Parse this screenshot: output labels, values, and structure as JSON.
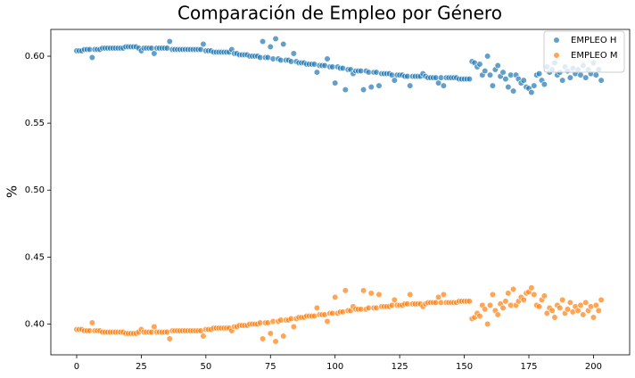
{
  "chart_data": {
    "type": "scatter",
    "title": "Comparación de Empleo por Género",
    "y_label": "%",
    "x": [
      0,
      1,
      2,
      3,
      4,
      5,
      6,
      7,
      8,
      9,
      10,
      11,
      12,
      13,
      14,
      15,
      16,
      17,
      18,
      19,
      20,
      21,
      22,
      23,
      24,
      25,
      26,
      27,
      28,
      29,
      30,
      31,
      32,
      33,
      34,
      35,
      36,
      37,
      38,
      39,
      40,
      41,
      42,
      43,
      44,
      45,
      46,
      47,
      48,
      49,
      50,
      51,
      52,
      53,
      54,
      55,
      56,
      57,
      58,
      59,
      60,
      61,
      62,
      63,
      64,
      65,
      66,
      67,
      68,
      69,
      70,
      71,
      72,
      73,
      74,
      75,
      76,
      77,
      78,
      79,
      80,
      81,
      82,
      83,
      84,
      85,
      86,
      87,
      88,
      89,
      90,
      91,
      92,
      93,
      94,
      95,
      96,
      97,
      98,
      99,
      100,
      101,
      102,
      103,
      104,
      105,
      106,
      107,
      108,
      109,
      110,
      111,
      112,
      113,
      114,
      115,
      116,
      117,
      118,
      119,
      120,
      121,
      122,
      123,
      124,
      125,
      126,
      127,
      128,
      129,
      130,
      131,
      132,
      133,
      134,
      135,
      136,
      137,
      138,
      139,
      140,
      141,
      142,
      143,
      144,
      145,
      146,
      147,
      148,
      149,
      150,
      151,
      152,
      153,
      154,
      155,
      156,
      157,
      158,
      159,
      160,
      161,
      162,
      163,
      164,
      165,
      166,
      167,
      168,
      169,
      170,
      171,
      172,
      173,
      174,
      175,
      176,
      177,
      178,
      179,
      180,
      181,
      182,
      183,
      184,
      185,
      186,
      187,
      188,
      189,
      190,
      191,
      192,
      193,
      194,
      195,
      196,
      197,
      198,
      199,
      200,
      201,
      202,
      203
    ],
    "series": [
      {
        "name": "EMPLEO H",
        "color": "#1f77b4",
        "values": [
          0.604,
          0.604,
          0.604,
          0.605,
          0.605,
          0.605,
          0.599,
          0.605,
          0.605,
          0.605,
          0.606,
          0.606,
          0.606,
          0.606,
          0.606,
          0.606,
          0.606,
          0.606,
          0.606,
          0.607,
          0.607,
          0.607,
          0.607,
          0.607,
          0.606,
          0.604,
          0.606,
          0.606,
          0.606,
          0.606,
          0.602,
          0.606,
          0.606,
          0.606,
          0.606,
          0.606,
          0.611,
          0.605,
          0.605,
          0.605,
          0.605,
          0.605,
          0.605,
          0.605,
          0.605,
          0.605,
          0.605,
          0.605,
          0.605,
          0.609,
          0.604,
          0.604,
          0.604,
          0.603,
          0.603,
          0.603,
          0.603,
          0.603,
          0.603,
          0.603,
          0.605,
          0.602,
          0.602,
          0.601,
          0.601,
          0.601,
          0.601,
          0.6,
          0.6,
          0.6,
          0.6,
          0.599,
          0.611,
          0.599,
          0.599,
          0.607,
          0.598,
          0.613,
          0.598,
          0.597,
          0.609,
          0.597,
          0.597,
          0.596,
          0.602,
          0.596,
          0.595,
          0.595,
          0.595,
          0.594,
          0.594,
          0.594,
          0.594,
          0.588,
          0.593,
          0.593,
          0.593,
          0.598,
          0.592,
          0.592,
          0.58,
          0.592,
          0.591,
          0.591,
          0.575,
          0.59,
          0.59,
          0.587,
          0.589,
          0.589,
          0.589,
          0.575,
          0.589,
          0.588,
          0.577,
          0.588,
          0.588,
          0.578,
          0.587,
          0.587,
          0.587,
          0.587,
          0.586,
          0.582,
          0.586,
          0.586,
          0.586,
          0.585,
          0.585,
          0.578,
          0.585,
          0.585,
          0.585,
          0.585,
          0.587,
          0.585,
          0.584,
          0.584,
          0.584,
          0.584,
          0.58,
          0.584,
          0.578,
          0.584,
          0.584,
          0.584,
          0.584,
          0.584,
          0.583,
          0.583,
          0.583,
          0.583,
          0.583,
          0.596,
          0.595,
          0.592,
          0.594,
          0.586,
          0.589,
          0.6,
          0.586,
          0.578,
          0.59,
          0.593,
          0.585,
          0.588,
          0.583,
          0.577,
          0.586,
          0.574,
          0.586,
          0.583,
          0.58,
          0.582,
          0.577,
          0.576,
          0.573,
          0.578,
          0.586,
          0.587,
          0.582,
          0.579,
          0.592,
          0.588,
          0.59,
          0.595,
          0.586,
          0.588,
          0.582,
          0.592,
          0.589,
          0.584,
          0.591,
          0.587,
          0.59,
          0.586,
          0.593,
          0.584,
          0.59,
          0.587,
          0.595,
          0.586,
          0.59,
          0.582
        ]
      },
      {
        "name": "EMPLEO M",
        "color": "#ff7f0e",
        "values": [
          0.396,
          0.396,
          0.396,
          0.395,
          0.395,
          0.395,
          0.401,
          0.395,
          0.395,
          0.395,
          0.394,
          0.394,
          0.394,
          0.394,
          0.394,
          0.394,
          0.394,
          0.394,
          0.394,
          0.393,
          0.393,
          0.393,
          0.393,
          0.393,
          0.394,
          0.396,
          0.394,
          0.394,
          0.394,
          0.394,
          0.398,
          0.394,
          0.394,
          0.394,
          0.394,
          0.394,
          0.389,
          0.395,
          0.395,
          0.395,
          0.395,
          0.395,
          0.395,
          0.395,
          0.395,
          0.395,
          0.395,
          0.395,
          0.395,
          0.391,
          0.396,
          0.396,
          0.396,
          0.397,
          0.397,
          0.397,
          0.397,
          0.397,
          0.397,
          0.397,
          0.395,
          0.398,
          0.398,
          0.399,
          0.399,
          0.399,
          0.399,
          0.4,
          0.4,
          0.4,
          0.4,
          0.401,
          0.389,
          0.401,
          0.401,
          0.393,
          0.402,
          0.387,
          0.402,
          0.403,
          0.391,
          0.403,
          0.403,
          0.404,
          0.398,
          0.404,
          0.405,
          0.405,
          0.405,
          0.406,
          0.406,
          0.406,
          0.406,
          0.412,
          0.407,
          0.407,
          0.407,
          0.402,
          0.408,
          0.408,
          0.42,
          0.408,
          0.409,
          0.409,
          0.425,
          0.41,
          0.41,
          0.413,
          0.411,
          0.411,
          0.411,
          0.425,
          0.411,
          0.412,
          0.423,
          0.412,
          0.412,
          0.422,
          0.413,
          0.413,
          0.413,
          0.413,
          0.414,
          0.418,
          0.414,
          0.414,
          0.414,
          0.415,
          0.415,
          0.422,
          0.415,
          0.415,
          0.415,
          0.415,
          0.413,
          0.415,
          0.416,
          0.416,
          0.416,
          0.416,
          0.42,
          0.416,
          0.422,
          0.416,
          0.416,
          0.416,
          0.416,
          0.416,
          0.417,
          0.417,
          0.417,
          0.417,
          0.417,
          0.404,
          0.405,
          0.408,
          0.406,
          0.414,
          0.411,
          0.4,
          0.414,
          0.422,
          0.41,
          0.407,
          0.415,
          0.412,
          0.417,
          0.423,
          0.414,
          0.426,
          0.414,
          0.417,
          0.42,
          0.418,
          0.423,
          0.424,
          0.427,
          0.422,
          0.414,
          0.413,
          0.418,
          0.421,
          0.408,
          0.412,
          0.41,
          0.405,
          0.414,
          0.412,
          0.418,
          0.408,
          0.411,
          0.416,
          0.409,
          0.413,
          0.41,
          0.414,
          0.407,
          0.416,
          0.41,
          0.413,
          0.405,
          0.414,
          0.41,
          0.418
        ]
      }
    ],
    "xlim": [
      -10,
      214
    ],
    "ylim": [
      0.377,
      0.62
    ],
    "xticks": [
      0,
      25,
      50,
      75,
      100,
      125,
      150,
      175,
      200
    ],
    "yticks": [
      {
        "value": 0.4,
        "label": "0.40"
      },
      0.45,
      {
        "value": 0.5,
        "label": "0.50"
      },
      0.55,
      {
        "value": 0.6,
        "label": "0.60"
      }
    ],
    "grid": false,
    "legend": "upper right"
  }
}
